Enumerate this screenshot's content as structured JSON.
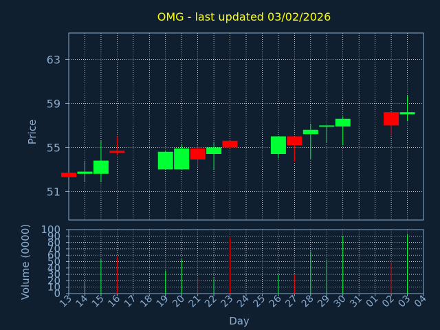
{
  "colors": {
    "background": "#0f1f30",
    "title": "#ffff00",
    "label": "#8aaccf",
    "axis": "#8aaccf",
    "grid": "#ffffff",
    "up": "#00ff33",
    "down": "#ff0000"
  },
  "chart_data": [
    {
      "type": "candlestick",
      "title": "OMG - last updated 03/02/2026",
      "xlabel": "",
      "ylabel": "Price",
      "ylim": [
        48.4,
        65.4
      ],
      "yticks": [
        51,
        55,
        59,
        63
      ],
      "grid": true,
      "categories": [
        "13",
        "14",
        "15",
        "16",
        "17",
        "18",
        "19",
        "20",
        "21",
        "22",
        "23",
        "24",
        "25",
        "26",
        "27",
        "28",
        "29",
        "30",
        "31",
        "01",
        "02",
        "03",
        "04"
      ],
      "candles": [
        {
          "x": "13",
          "open": 52.7,
          "close": 52.3,
          "high": 52.7,
          "low": 52.3
        },
        {
          "x": "14",
          "open": 52.6,
          "close": 52.8,
          "high": 53.7,
          "low": 51.9
        },
        {
          "x": "15",
          "open": 52.6,
          "close": 53.8,
          "high": 55.6,
          "low": 51.9
        },
        {
          "x": "16",
          "open": 54.7,
          "close": 54.5,
          "high": 56.0,
          "low": 54.3
        },
        {
          "x": "19",
          "open": 53.0,
          "close": 54.6,
          "high": 54.7,
          "low": 53.0
        },
        {
          "x": "20",
          "open": 53.0,
          "close": 54.9,
          "high": 55.3,
          "low": 53.0
        },
        {
          "x": "21",
          "open": 54.9,
          "close": 53.9,
          "high": 55.2,
          "low": 53.2
        },
        {
          "x": "22",
          "open": 54.4,
          "close": 55.0,
          "high": 55.5,
          "low": 53.0
        },
        {
          "x": "23",
          "open": 55.6,
          "close": 55.0,
          "high": 55.6,
          "low": 54.9
        },
        {
          "x": "26",
          "open": 54.4,
          "close": 56.0,
          "high": 56.0,
          "low": 54.0
        },
        {
          "x": "27",
          "open": 56.0,
          "close": 55.2,
          "high": 56.0,
          "low": 53.7
        },
        {
          "x": "28",
          "open": 56.2,
          "close": 56.6,
          "high": 57.1,
          "low": 53.9
        },
        {
          "x": "29",
          "open": 56.9,
          "close": 57.0,
          "high": 57.0,
          "low": 55.4
        },
        {
          "x": "30",
          "open": 56.9,
          "close": 57.6,
          "high": 57.8,
          "low": 55.2
        },
        {
          "x": "02",
          "open": 58.2,
          "close": 57.0,
          "high": 58.2,
          "low": 56.1
        },
        {
          "x": "03",
          "open": 58.0,
          "close": 58.2,
          "high": 59.7,
          "low": 57.4
        }
      ]
    },
    {
      "type": "bar",
      "xlabel": "Day",
      "ylabel": "Volume (0000)",
      "ylim": [
        0,
        100
      ],
      "yticks": [
        0,
        10,
        20,
        30,
        40,
        50,
        60,
        70,
        80,
        90,
        100
      ],
      "grid": true,
      "categories": [
        "13",
        "14",
        "15",
        "16",
        "17",
        "18",
        "19",
        "20",
        "21",
        "22",
        "23",
        "24",
        "25",
        "26",
        "27",
        "28",
        "29",
        "30",
        "31",
        "01",
        "02",
        "03",
        "04"
      ],
      "bars": [
        {
          "x": "14",
          "value": 18,
          "direction": "up"
        },
        {
          "x": "15",
          "value": 54,
          "direction": "up"
        },
        {
          "x": "16",
          "value": 58,
          "direction": "down"
        },
        {
          "x": "19",
          "value": 36,
          "direction": "up"
        },
        {
          "x": "20",
          "value": 54,
          "direction": "up"
        },
        {
          "x": "21",
          "value": 26,
          "direction": "down"
        },
        {
          "x": "22",
          "value": 24,
          "direction": "up"
        },
        {
          "x": "23",
          "value": 88,
          "direction": "down"
        },
        {
          "x": "26",
          "value": 30,
          "direction": "up"
        },
        {
          "x": "27",
          "value": 30,
          "direction": "down"
        },
        {
          "x": "28",
          "value": 66,
          "direction": "up"
        },
        {
          "x": "29",
          "value": 53,
          "direction": "up"
        },
        {
          "x": "30",
          "value": 90,
          "direction": "up"
        },
        {
          "x": "02",
          "value": 48,
          "direction": "down"
        },
        {
          "x": "03",
          "value": 92,
          "direction": "up"
        }
      ]
    }
  ]
}
